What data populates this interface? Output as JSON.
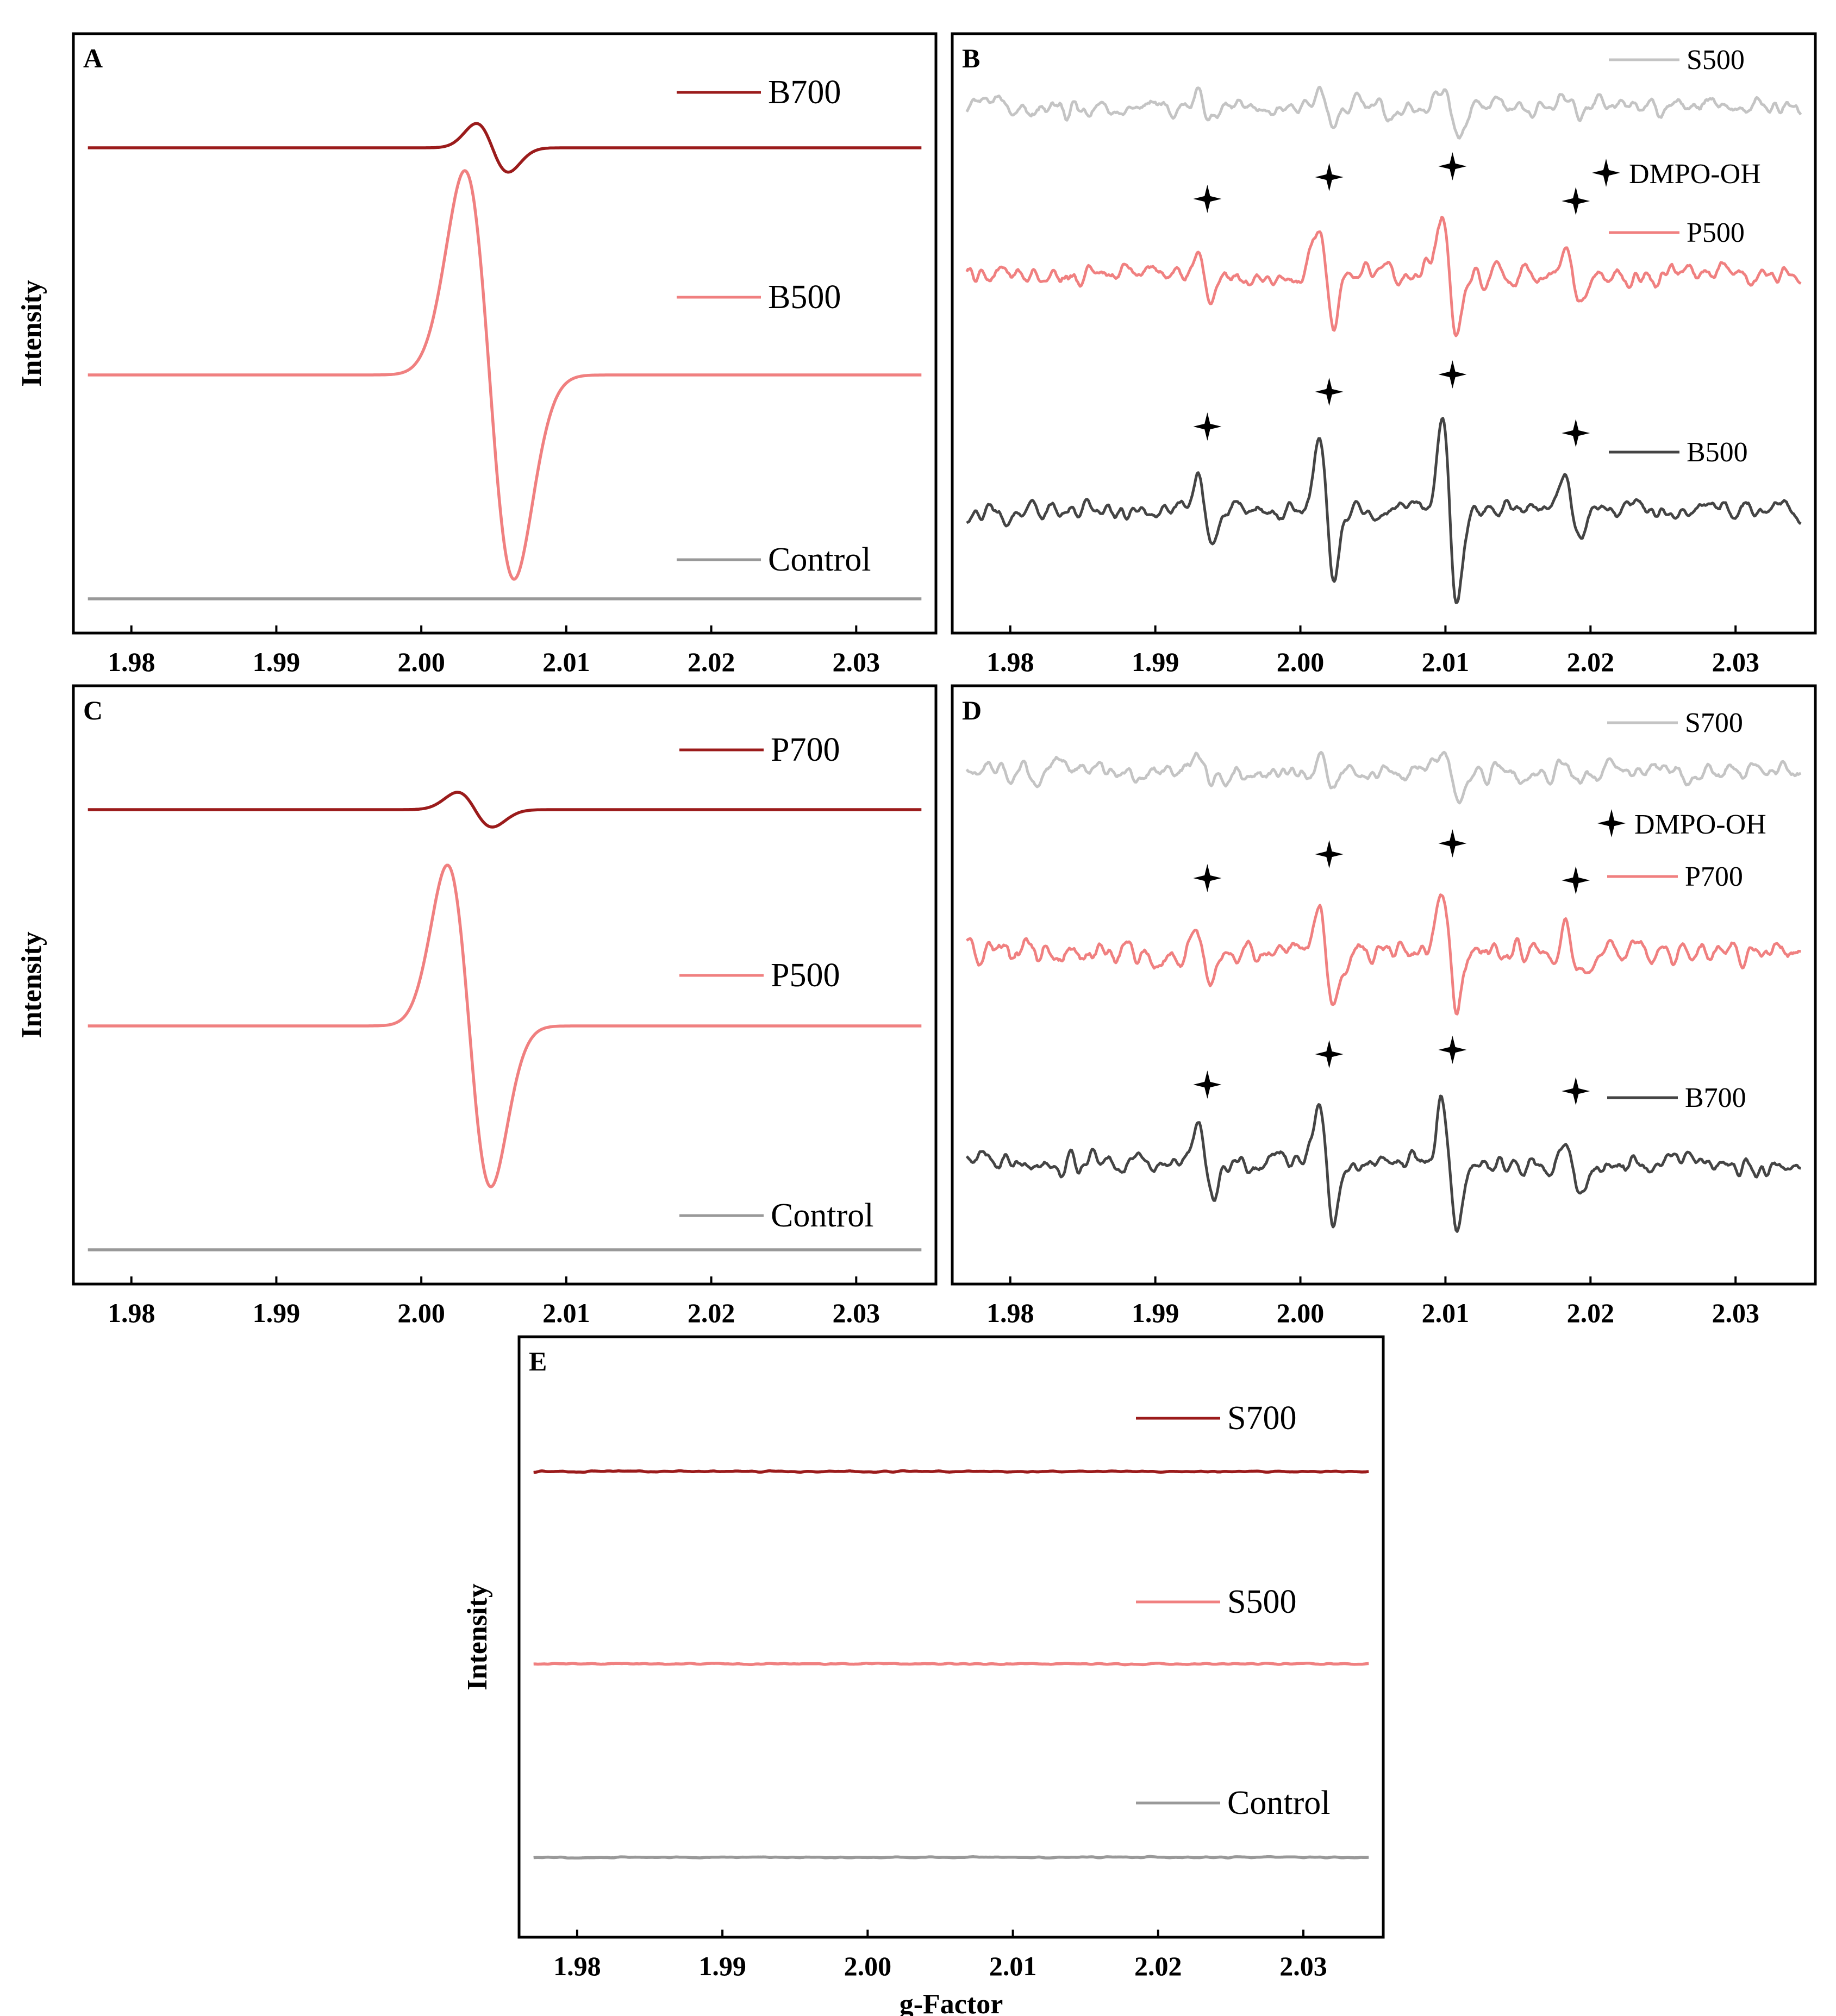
{
  "chart_data": [
    {
      "panel": "A",
      "type": "line",
      "ylabel": "Intensity",
      "xlabel": "",
      "xlim": [
        1.976,
        2.0355
      ],
      "x_ticks": [
        "1.98",
        "1.99",
        "2.00",
        "2.01",
        "2.02",
        "2.03"
      ],
      "signal": "epr_derivative",
      "series": [
        {
          "name": "B700",
          "color": "#9b1b1b",
          "center": 2.0049,
          "amplitude": 0.28,
          "width": 0.0011,
          "noise": 0
        },
        {
          "name": "B500",
          "color": "#f08080",
          "center": 2.0047,
          "amplitude": 2.35,
          "width": 0.0017,
          "noise": 0
        },
        {
          "name": "Control",
          "color": "#999999",
          "center": 2.005,
          "amplitude": 0,
          "width": 0.001,
          "noise": 0
        }
      ],
      "legend": "top-right"
    },
    {
      "panel": "B",
      "type": "line",
      "ylabel": "",
      "xlabel": "",
      "xlim": [
        1.976,
        2.0355
      ],
      "x_ticks": [
        "1.98",
        "1.99",
        "2.00",
        "2.01",
        "2.02",
        "2.03"
      ],
      "signal": "dmpo_oh_spectrum",
      "marker_label": "DMPO-OH",
      "marker_x": [
        1.9934,
        2.0018,
        2.0103,
        2.0188
      ],
      "series": [
        {
          "name": "S500",
          "color": "#c4c4c4",
          "peak_amplitudes": [
            0.15,
            0.4,
            0.55,
            0.15
          ],
          "noise": 0.35,
          "stars": false
        },
        {
          "name": "P500",
          "color": "#f08080",
          "peak_amplitudes": [
            0.6,
            1.1,
            1.35,
            0.55
          ],
          "noise": 0.35,
          "stars": true
        },
        {
          "name": "B500",
          "color": "#444444",
          "peak_amplitudes": [
            0.8,
            1.6,
            2.0,
            0.65
          ],
          "noise": 0.35,
          "stars": true
        }
      ],
      "legend": "top-right"
    },
    {
      "panel": "C",
      "type": "line",
      "ylabel": "Intensity",
      "xlabel": "",
      "xlim": [
        1.976,
        2.0355
      ],
      "x_ticks": [
        "1.98",
        "1.99",
        "2.00",
        "2.01",
        "2.02",
        "2.03"
      ],
      "signal": "epr_derivative",
      "series": [
        {
          "name": "P700",
          "color": "#9b1b1b",
          "center": 2.0037,
          "amplitude": 0.2,
          "width": 0.0012,
          "noise": 0
        },
        {
          "name": "P500",
          "color": "#f08080",
          "center": 2.0033,
          "amplitude": 1.85,
          "width": 0.0015,
          "noise": 0
        },
        {
          "name": "Control",
          "color": "#999999",
          "center": 2.004,
          "amplitude": 0,
          "width": 0.001,
          "noise": 0
        }
      ],
      "legend": "top-right"
    },
    {
      "panel": "D",
      "type": "line",
      "ylabel": "",
      "xlabel": "",
      "xlim": [
        1.976,
        2.0355
      ],
      "x_ticks": [
        "1.98",
        "1.99",
        "2.00",
        "2.01",
        "2.02",
        "2.03"
      ],
      "signal": "dmpo_oh_spectrum",
      "marker_label": "DMPO-OH",
      "marker_x": [
        1.9934,
        2.0018,
        2.0103,
        2.0188
      ],
      "series": [
        {
          "name": "S700",
          "color": "#c4c4c4",
          "peak_amplitudes": [
            0.15,
            0.35,
            0.5,
            0.15
          ],
          "noise": 0.35,
          "stars": false
        },
        {
          "name": "P700",
          "color": "#f08080",
          "peak_amplitudes": [
            0.6,
            1.15,
            1.4,
            0.55
          ],
          "noise": 0.35,
          "stars": true
        },
        {
          "name": "B700",
          "color": "#444444",
          "peak_amplitudes": [
            0.7,
            1.4,
            1.5,
            0.55
          ],
          "noise": 0.35,
          "stars": true
        }
      ],
      "legend": "top-right"
    },
    {
      "panel": "E",
      "type": "line",
      "ylabel": "Intensity",
      "xlabel": "g-Factor",
      "xlim": [
        1.976,
        2.0355
      ],
      "x_ticks": [
        "1.98",
        "1.99",
        "2.00",
        "2.01",
        "2.02",
        "2.03"
      ],
      "signal": "flat",
      "series": [
        {
          "name": "S700",
          "color": "#9b1b1b",
          "amplitude": 0,
          "noise": 0.02
        },
        {
          "name": "S500",
          "color": "#f08080",
          "amplitude": 0,
          "noise": 0.02
        },
        {
          "name": "Control",
          "color": "#999999",
          "amplitude": 0,
          "noise": 0.02
        }
      ],
      "legend": "top-right"
    }
  ]
}
